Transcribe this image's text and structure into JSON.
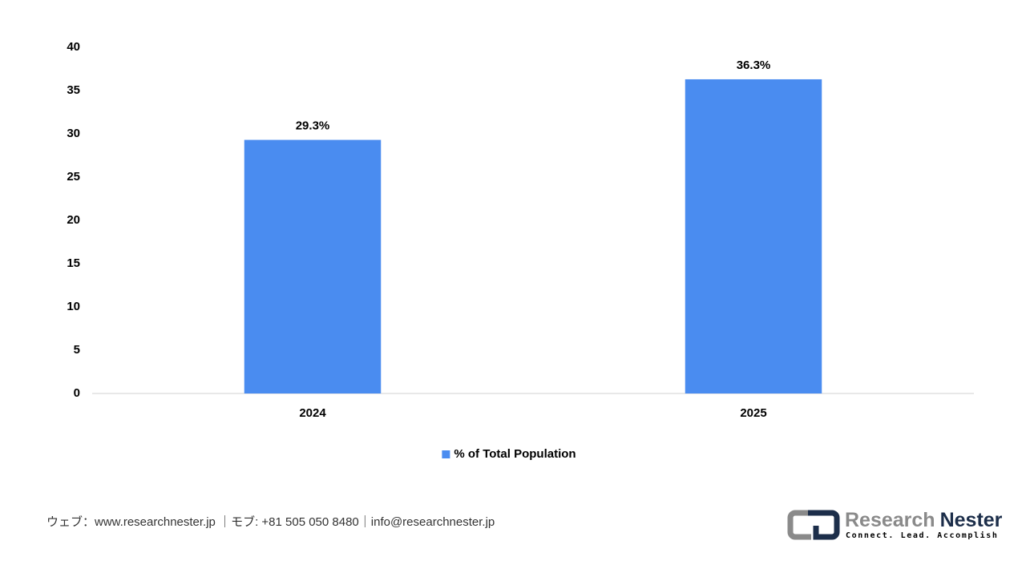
{
  "chart_data": {
    "type": "bar",
    "categories": [
      "2024",
      "2025"
    ],
    "series": [
      {
        "name": "% of Total Population",
        "color": "#4a8cf0",
        "values": [
          29.3,
          36.3
        ],
        "value_labels": [
          "29.3%",
          "36.3%"
        ]
      }
    ],
    "ylim": [
      0,
      40
    ],
    "yticks": [
      0,
      5,
      10,
      15,
      20,
      25,
      30,
      35,
      40
    ],
    "grid": false,
    "legend": "bottom"
  },
  "footer": {
    "contact": "ウェブ：www.researchnester.jp ｜モブ: +81 505 050 8480｜info@researchnester.jp"
  },
  "logo": {
    "name_part1": "Research",
    "name_part2": "Nester",
    "tagline": "Connect. Lead. Accomplish"
  }
}
